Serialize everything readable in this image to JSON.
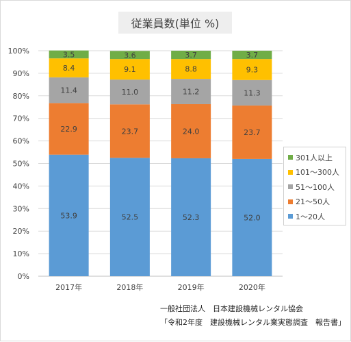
{
  "chart_data": {
    "type": "bar",
    "stacked": true,
    "title": "従業員数(単位 %)",
    "categories": [
      "2017年",
      "2018年",
      "2019年",
      "2020年"
    ],
    "series": [
      {
        "name": "1～20人",
        "color": "#5b9bd5",
        "values": [
          53.9,
          52.5,
          52.3,
          52.0
        ]
      },
      {
        "name": "21～50人",
        "color": "#ed7d31",
        "values": [
          22.9,
          23.7,
          24.0,
          23.7
        ]
      },
      {
        "name": "51～100人",
        "color": "#a5a5a5",
        "values": [
          11.4,
          11.0,
          11.2,
          11.3
        ]
      },
      {
        "name": "101～300人",
        "color": "#ffc000",
        "values": [
          8.4,
          9.1,
          8.8,
          9.3
        ]
      },
      {
        "name": "301人以上",
        "color": "#70ad47",
        "values": [
          3.5,
          3.6,
          3.7,
          3.7
        ]
      }
    ],
    "yticks": [
      "0%",
      "10%",
      "20%",
      "30%",
      "40%",
      "50%",
      "60%",
      "70%",
      "80%",
      "90%",
      "100%"
    ],
    "ylim": [
      0,
      100
    ],
    "legend_position": "right",
    "grid": true
  },
  "source": {
    "line1": "一般社団法人　日本建設機械レンタル協会",
    "line2": "「令和2年度　建設機械レンタル業実態調査　報告書」"
  }
}
